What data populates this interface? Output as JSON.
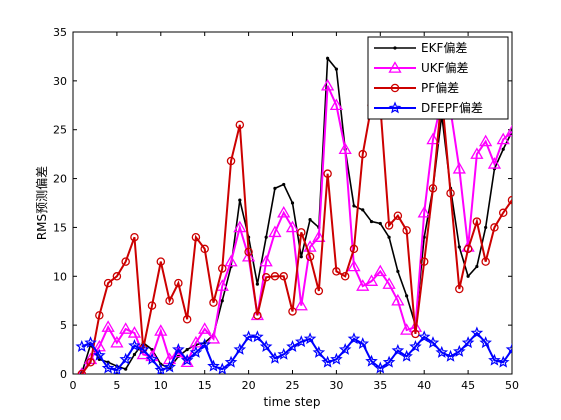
{
  "chart_data": {
    "type": "line",
    "title": "",
    "xlabel": "time step",
    "ylabel": "RMS预测偏差",
    "xlim": [
      0,
      50
    ],
    "ylim": [
      0,
      35
    ],
    "xticks": [
      "0",
      "5",
      "10",
      "15",
      "20",
      "25",
      "30",
      "35",
      "40",
      "45",
      "50"
    ],
    "yticks": [
      "0",
      "5",
      "10",
      "15",
      "20",
      "25",
      "30",
      "35"
    ],
    "grid": false,
    "legend_position": "top-right",
    "x": [
      1,
      2,
      3,
      4,
      5,
      6,
      7,
      8,
      9,
      10,
      11,
      12,
      13,
      14,
      15,
      16,
      17,
      18,
      19,
      20,
      21,
      22,
      23,
      24,
      25,
      26,
      27,
      28,
      29,
      30,
      31,
      32,
      33,
      34,
      35,
      36,
      37,
      38,
      39,
      40,
      41,
      42,
      43,
      44,
      45,
      46,
      47,
      48,
      49,
      50
    ],
    "series": [
      {
        "name": "EKF偏差",
        "color": "#000000",
        "marker": "dot",
        "values": [
          0.1,
          3.0,
          1.5,
          1.2,
          0.8,
          0.5,
          2.0,
          3.2,
          2.5,
          1.0,
          0.6,
          1.8,
          2.5,
          3.0,
          3.2,
          4.0,
          7.5,
          11.0,
          17.8,
          14.0,
          9.2,
          14.0,
          19.0,
          19.4,
          17.5,
          12.0,
          15.8,
          15.0,
          32.3,
          31.2,
          23.0,
          17.2,
          16.8,
          15.6,
          15.4,
          14.0,
          10.5,
          8.0,
          5.0,
          14.0,
          19.0,
          26.5,
          19.0,
          13.0,
          10.0,
          11.0,
          15.0,
          21.0,
          23.0,
          24.8
        ]
      },
      {
        "name": "UKF偏差",
        "color": "#ff00ff",
        "marker": "triangle",
        "values": [
          0.0,
          1.5,
          2.8,
          4.8,
          3.2,
          4.6,
          4.2,
          2.0,
          1.8,
          4.4,
          1.5,
          2.2,
          1.2,
          3.2,
          4.6,
          3.6,
          9.0,
          11.5,
          15.0,
          12.0,
          6.0,
          11.5,
          14.5,
          16.5,
          15.0,
          7.0,
          13.0,
          14.0,
          29.5,
          27.5,
          23.0,
          11.0,
          9.0,
          9.5,
          10.5,
          9.2,
          7.5,
          4.5,
          4.8,
          16.5,
          24.0,
          28.0,
          27.0,
          21.0,
          13.0,
          22.5,
          23.8,
          21.5,
          24.0,
          24.8
        ]
      },
      {
        "name": "PF偏差",
        "color": "#cc0000",
        "marker": "circle",
        "values": [
          0.0,
          1.2,
          6.0,
          9.3,
          10.0,
          11.5,
          14.0,
          2.6,
          7.0,
          11.5,
          7.5,
          9.3,
          5.6,
          14.0,
          12.8,
          7.3,
          10.8,
          21.8,
          25.5,
          12.5,
          6.0,
          9.9,
          10.0,
          10.0,
          6.4,
          14.5,
          12.0,
          8.5,
          20.5,
          10.5,
          10.0,
          12.8,
          22.5,
          27.5,
          27.5,
          15.2,
          16.2,
          14.7,
          4.1,
          11.5,
          19.0,
          28.5,
          18.5,
          8.7,
          12.8,
          15.6,
          11.5,
          15.0,
          16.5,
          17.8
        ]
      },
      {
        "name": "DFEPF偏差",
        "color": "#0000ff",
        "marker": "star",
        "values": [
          2.8,
          3.2,
          1.9,
          0.6,
          0.4,
          1.5,
          2.9,
          2.5,
          1.5,
          0.4,
          0.7,
          2.5,
          1.4,
          2.2,
          3.0,
          0.8,
          0.5,
          1.2,
          2.5,
          3.8,
          3.8,
          2.8,
          1.6,
          2.0,
          2.8,
          3.3,
          3.6,
          2.2,
          1.2,
          1.5,
          2.5,
          3.6,
          3.1,
          1.3,
          0.6,
          1.2,
          2.4,
          1.8,
          2.8,
          3.8,
          3.2,
          2.2,
          1.8,
          2.3,
          3.2,
          4.2,
          3.2,
          1.4,
          1.2,
          2.5
        ]
      }
    ]
  }
}
